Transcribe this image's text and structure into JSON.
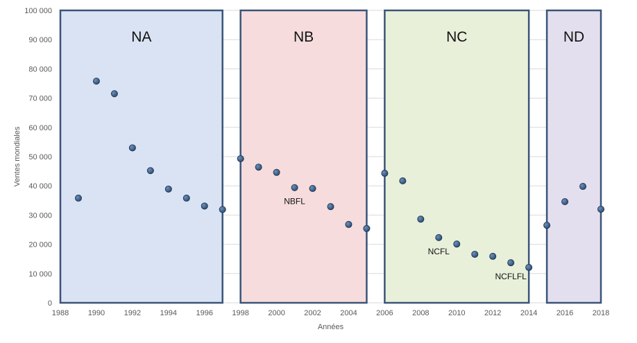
{
  "chart_data": {
    "type": "scatter",
    "title": "",
    "xlabel": "Années",
    "ylabel": "Ventes mondiales",
    "xlim": [
      1988,
      2018
    ],
    "ylim": [
      0,
      100000
    ],
    "x_ticks": [
      "1988",
      "1990",
      "1992",
      "1994",
      "1996",
      "1998",
      "2000",
      "2002",
      "2004",
      "2006",
      "2008",
      "2010",
      "2012",
      "2014",
      "2016",
      "2018"
    ],
    "y_ticks": [
      "0",
      "10 000",
      "20 000",
      "30 000",
      "40 000",
      "50 000",
      "60 000",
      "70 000",
      "80 000",
      "90 000",
      "100 000"
    ],
    "grid": true,
    "points": [
      {
        "x": 1989,
        "y": 35800
      },
      {
        "x": 1990,
        "y": 75800
      },
      {
        "x": 1991,
        "y": 71500
      },
      {
        "x": 1992,
        "y": 53000
      },
      {
        "x": 1993,
        "y": 45200
      },
      {
        "x": 1994,
        "y": 38900
      },
      {
        "x": 1995,
        "y": 35800
      },
      {
        "x": 1996,
        "y": 33100
      },
      {
        "x": 1997,
        "y": 31900
      },
      {
        "x": 1998,
        "y": 49300
      },
      {
        "x": 1999,
        "y": 46400
      },
      {
        "x": 2000,
        "y": 44600
      },
      {
        "x": 2001,
        "y": 39400
      },
      {
        "x": 2002,
        "y": 39100
      },
      {
        "x": 2003,
        "y": 32900
      },
      {
        "x": 2004,
        "y": 26800
      },
      {
        "x": 2005,
        "y": 25400
      },
      {
        "x": 2006,
        "y": 44300
      },
      {
        "x": 2007,
        "y": 41700
      },
      {
        "x": 2008,
        "y": 28600
      },
      {
        "x": 2009,
        "y": 22300
      },
      {
        "x": 2010,
        "y": 20100
      },
      {
        "x": 2011,
        "y": 16600
      },
      {
        "x": 2012,
        "y": 15900
      },
      {
        "x": 2013,
        "y": 13700
      },
      {
        "x": 2014,
        "y": 12100
      },
      {
        "x": 2015,
        "y": 26500
      },
      {
        "x": 2016,
        "y": 34600
      },
      {
        "x": 2017,
        "y": 39800
      },
      {
        "x": 2018,
        "y": 32000
      }
    ],
    "regions": [
      {
        "label": "NA",
        "x_start": 1988,
        "x_end": 1997,
        "color": "#dae3f3"
      },
      {
        "label": "NB",
        "x_start": 1998,
        "x_end": 2005,
        "color": "#f6dcdc"
      },
      {
        "label": "NC",
        "x_start": 2006,
        "x_end": 2014,
        "color": "#e8f0da"
      },
      {
        "label": "ND",
        "x_start": 2015,
        "x_end": 2018,
        "color": "#e4dfee"
      }
    ],
    "annotations": [
      {
        "text": "NBFL",
        "x": 2001,
        "y": 39400
      },
      {
        "text": "NCFL",
        "x": 2009,
        "y": 22300
      },
      {
        "text": "NCFLFL",
        "x": 2013,
        "y": 13700
      }
    ],
    "colors": {
      "marker": "#2f4e73",
      "region_border": "#3a5478",
      "grid": "#d9d9d9"
    }
  }
}
